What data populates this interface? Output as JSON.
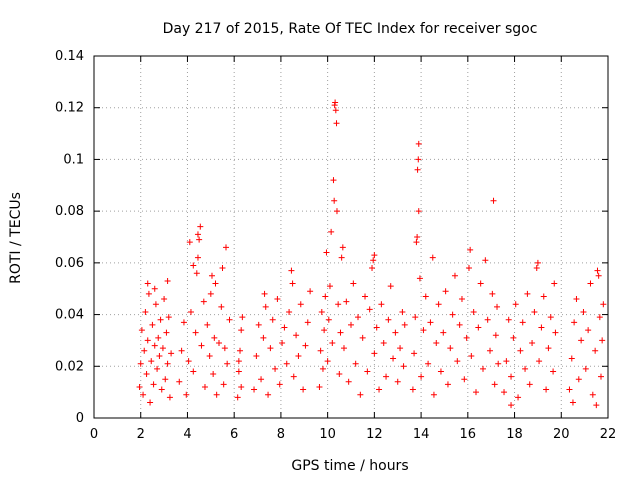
{
  "chart_data": {
    "type": "scatter",
    "title": "Day 217 of 2015, Rate Of TEC Index for receiver sgoc",
    "xlabel": "GPS time / hours",
    "ylabel": "ROTI / TECUs",
    "xlim": [
      0,
      22
    ],
    "ylim": [
      0,
      0.14
    ],
    "grid": true,
    "marker": "+",
    "series_color": "#ff0000",
    "x_ticks": [
      {
        "value": 0,
        "label": "0"
      },
      {
        "value": 2,
        "label": "2"
      },
      {
        "value": 4,
        "label": "4"
      },
      {
        "value": 6,
        "label": "6"
      },
      {
        "value": 8,
        "label": "8"
      },
      {
        "value": 10,
        "label": "10"
      },
      {
        "value": 12,
        "label": "12"
      },
      {
        "value": 14,
        "label": "14"
      },
      {
        "value": 16,
        "label": "16"
      },
      {
        "value": 18,
        "label": "18"
      },
      {
        "value": 20,
        "label": "20"
      },
      {
        "value": 22,
        "label": "22"
      }
    ],
    "y_ticks": [
      {
        "value": 0,
        "label": "0"
      },
      {
        "value": 0.02,
        "label": "0.02"
      },
      {
        "value": 0.04,
        "label": "0.04"
      },
      {
        "value": 0.06,
        "label": "0.06"
      },
      {
        "value": 0.08,
        "label": "0.08"
      },
      {
        "value": 0.1,
        "label": "0.1"
      },
      {
        "value": 0.12,
        "label": "0.12"
      },
      {
        "value": 0.14,
        "label": "0.14"
      }
    ],
    "series": [
      {
        "name": "ROTI",
        "points": [
          [
            1.95,
            0.012
          ],
          [
            2.0,
            0.021
          ],
          [
            2.05,
            0.034
          ],
          [
            2.1,
            0.009
          ],
          [
            2.15,
            0.026
          ],
          [
            2.2,
            0.041
          ],
          [
            2.25,
            0.017
          ],
          [
            2.3,
            0.03
          ],
          [
            2.35,
            0.048
          ],
          [
            2.4,
            0.006
          ],
          [
            2.45,
            0.022
          ],
          [
            2.5,
            0.036
          ],
          [
            2.55,
            0.013
          ],
          [
            2.6,
            0.028
          ],
          [
            2.65,
            0.044
          ],
          [
            2.7,
            0.019
          ],
          [
            2.75,
            0.031
          ],
          [
            2.8,
            0.024
          ],
          [
            2.85,
            0.038
          ],
          [
            2.9,
            0.011
          ],
          [
            2.95,
            0.027
          ],
          [
            3.0,
            0.046
          ],
          [
            3.05,
            0.015
          ],
          [
            3.1,
            0.033
          ],
          [
            3.15,
            0.021
          ],
          [
            3.2,
            0.039
          ],
          [
            3.25,
            0.008
          ],
          [
            3.3,
            0.025
          ],
          [
            2.3,
            0.052
          ],
          [
            2.6,
            0.05
          ],
          [
            3.15,
            0.053
          ],
          [
            3.65,
            0.014
          ],
          [
            3.75,
            0.026
          ],
          [
            3.85,
            0.037
          ],
          [
            3.95,
            0.009
          ],
          [
            4.05,
            0.022
          ],
          [
            4.15,
            0.041
          ],
          [
            4.25,
            0.018
          ],
          [
            4.35,
            0.033
          ],
          [
            4.4,
            0.056
          ],
          [
            4.45,
            0.062
          ],
          [
            4.5,
            0.069
          ],
          [
            4.55,
            0.074
          ],
          [
            4.6,
            0.028
          ],
          [
            4.7,
            0.045
          ],
          [
            4.75,
            0.012
          ],
          [
            4.85,
            0.036
          ],
          [
            4.95,
            0.024
          ],
          [
            5.0,
            0.048
          ],
          [
            5.05,
            0.055
          ],
          [
            5.1,
            0.017
          ],
          [
            5.15,
            0.031
          ],
          [
            5.2,
            0.052
          ],
          [
            5.25,
            0.009
          ],
          [
            5.35,
            0.029
          ],
          [
            5.45,
            0.043
          ],
          [
            5.5,
            0.058
          ],
          [
            5.55,
            0.013
          ],
          [
            5.6,
            0.027
          ],
          [
            5.65,
            0.066
          ],
          [
            5.7,
            0.021
          ],
          [
            5.8,
            0.038
          ],
          [
            4.1,
            0.068
          ],
          [
            4.25,
            0.059
          ],
          [
            4.45,
            0.071
          ],
          [
            6.15,
            0.008
          ],
          [
            6.2,
            0.018
          ],
          [
            6.25,
            0.026
          ],
          [
            6.3,
            0.034
          ],
          [
            6.35,
            0.039
          ],
          [
            6.2,
            0.022
          ],
          [
            6.3,
            0.012
          ],
          [
            6.85,
            0.011
          ],
          [
            6.95,
            0.024
          ],
          [
            7.05,
            0.036
          ],
          [
            7.15,
            0.015
          ],
          [
            7.25,
            0.031
          ],
          [
            7.35,
            0.043
          ],
          [
            7.45,
            0.009
          ],
          [
            7.55,
            0.027
          ],
          [
            7.65,
            0.038
          ],
          [
            7.75,
            0.019
          ],
          [
            7.85,
            0.046
          ],
          [
            7.95,
            0.013
          ],
          [
            8.05,
            0.029
          ],
          [
            8.15,
            0.035
          ],
          [
            8.25,
            0.021
          ],
          [
            8.35,
            0.041
          ],
          [
            8.45,
            0.057
          ],
          [
            8.55,
            0.016
          ],
          [
            8.65,
            0.032
          ],
          [
            8.75,
            0.024
          ],
          [
            8.85,
            0.044
          ],
          [
            8.95,
            0.011
          ],
          [
            9.05,
            0.028
          ],
          [
            9.15,
            0.037
          ],
          [
            9.25,
            0.049
          ],
          [
            7.3,
            0.048
          ],
          [
            8.5,
            0.052
          ],
          [
            9.65,
            0.012
          ],
          [
            9.7,
            0.026
          ],
          [
            9.75,
            0.041
          ],
          [
            9.8,
            0.019
          ],
          [
            9.85,
            0.034
          ],
          [
            9.9,
            0.047
          ],
          [
            9.95,
            0.064
          ],
          [
            10.0,
            0.022
          ],
          [
            10.05,
            0.038
          ],
          [
            10.1,
            0.051
          ],
          [
            10.15,
            0.072
          ],
          [
            10.2,
            0.029
          ],
          [
            10.25,
            0.092
          ],
          [
            10.28,
            0.084
          ],
          [
            10.3,
            0.121
          ],
          [
            10.32,
            0.122
          ],
          [
            10.35,
            0.119
          ],
          [
            10.38,
            0.114
          ],
          [
            10.4,
            0.08
          ],
          [
            10.45,
            0.044
          ],
          [
            10.5,
            0.017
          ],
          [
            10.55,
            0.033
          ],
          [
            10.6,
            0.062
          ],
          [
            10.65,
            0.066
          ],
          [
            10.7,
            0.027
          ],
          [
            10.8,
            0.045
          ],
          [
            10.9,
            0.014
          ],
          [
            11.0,
            0.036
          ],
          [
            11.1,
            0.052
          ],
          [
            11.2,
            0.021
          ],
          [
            11.3,
            0.039
          ],
          [
            11.4,
            0.009
          ],
          [
            11.5,
            0.031
          ],
          [
            11.6,
            0.047
          ],
          [
            11.7,
            0.018
          ],
          [
            11.8,
            0.042
          ],
          [
            11.9,
            0.058
          ],
          [
            12.0,
            0.025
          ],
          [
            12.1,
            0.035
          ],
          [
            12.2,
            0.011
          ],
          [
            12.3,
            0.044
          ],
          [
            12.4,
            0.029
          ],
          [
            12.5,
            0.016
          ],
          [
            12.6,
            0.038
          ],
          [
            12.7,
            0.051
          ],
          [
            12.8,
            0.023
          ],
          [
            12.9,
            0.033
          ],
          [
            13.0,
            0.014
          ],
          [
            13.1,
            0.027
          ],
          [
            13.2,
            0.041
          ],
          [
            13.25,
            0.02
          ],
          [
            13.3,
            0.036
          ],
          [
            11.95,
            0.061
          ],
          [
            12.0,
            0.063
          ],
          [
            13.65,
            0.011
          ],
          [
            13.7,
            0.025
          ],
          [
            13.75,
            0.039
          ],
          [
            13.8,
            0.068
          ],
          [
            13.83,
            0.07
          ],
          [
            13.85,
            0.096
          ],
          [
            13.88,
            0.1
          ],
          [
            13.9,
            0.106
          ],
          [
            13.95,
            0.054
          ],
          [
            14.0,
            0.016
          ],
          [
            14.1,
            0.034
          ],
          [
            14.2,
            0.047
          ],
          [
            14.3,
            0.021
          ],
          [
            14.4,
            0.037
          ],
          [
            14.5,
            0.062
          ],
          [
            14.55,
            0.009
          ],
          [
            14.65,
            0.029
          ],
          [
            14.75,
            0.044
          ],
          [
            14.85,
            0.018
          ],
          [
            14.95,
            0.033
          ],
          [
            15.05,
            0.049
          ],
          [
            15.15,
            0.013
          ],
          [
            15.25,
            0.027
          ],
          [
            15.35,
            0.04
          ],
          [
            15.45,
            0.055
          ],
          [
            15.55,
            0.022
          ],
          [
            15.65,
            0.036
          ],
          [
            15.75,
            0.046
          ],
          [
            15.85,
            0.015
          ],
          [
            15.95,
            0.031
          ],
          [
            16.05,
            0.058
          ],
          [
            16.1,
            0.065
          ],
          [
            16.15,
            0.024
          ],
          [
            16.25,
            0.041
          ],
          [
            16.35,
            0.01
          ],
          [
            16.45,
            0.035
          ],
          [
            16.55,
            0.052
          ],
          [
            16.65,
            0.019
          ],
          [
            16.75,
            0.061
          ],
          [
            16.85,
            0.038
          ],
          [
            16.95,
            0.026
          ],
          [
            17.05,
            0.048
          ],
          [
            17.1,
            0.084
          ],
          [
            17.15,
            0.013
          ],
          [
            17.2,
            0.032
          ],
          [
            17.25,
            0.043
          ],
          [
            17.3,
            0.021
          ],
          [
            13.9,
            0.08
          ],
          [
            17.55,
            0.01
          ],
          [
            17.65,
            0.022
          ],
          [
            17.75,
            0.038
          ],
          [
            17.85,
            0.016
          ],
          [
            17.95,
            0.031
          ],
          [
            18.05,
            0.044
          ],
          [
            18.15,
            0.008
          ],
          [
            18.25,
            0.026
          ],
          [
            18.35,
            0.037
          ],
          [
            18.45,
            0.019
          ],
          [
            18.55,
            0.048
          ],
          [
            18.65,
            0.013
          ],
          [
            18.75,
            0.029
          ],
          [
            18.85,
            0.041
          ],
          [
            18.95,
            0.058
          ],
          [
            19.0,
            0.06
          ],
          [
            19.05,
            0.022
          ],
          [
            19.15,
            0.035
          ],
          [
            19.25,
            0.047
          ],
          [
            19.35,
            0.011
          ],
          [
            19.45,
            0.027
          ],
          [
            19.55,
            0.039
          ],
          [
            19.65,
            0.018
          ],
          [
            19.7,
            0.052
          ],
          [
            19.75,
            0.033
          ],
          [
            17.85,
            0.005
          ],
          [
            20.35,
            0.011
          ],
          [
            20.45,
            0.023
          ],
          [
            20.55,
            0.037
          ],
          [
            20.65,
            0.046
          ],
          [
            20.75,
            0.015
          ],
          [
            20.85,
            0.03
          ],
          [
            20.95,
            0.041
          ],
          [
            21.05,
            0.019
          ],
          [
            21.15,
            0.034
          ],
          [
            21.25,
            0.052
          ],
          [
            21.35,
            0.009
          ],
          [
            21.45,
            0.026
          ],
          [
            21.55,
            0.057
          ],
          [
            21.6,
            0.055
          ],
          [
            21.65,
            0.039
          ],
          [
            21.7,
            0.016
          ],
          [
            21.75,
            0.03
          ],
          [
            21.8,
            0.044
          ],
          [
            20.5,
            0.006
          ],
          [
            21.5,
            0.005
          ]
        ]
      }
    ]
  }
}
